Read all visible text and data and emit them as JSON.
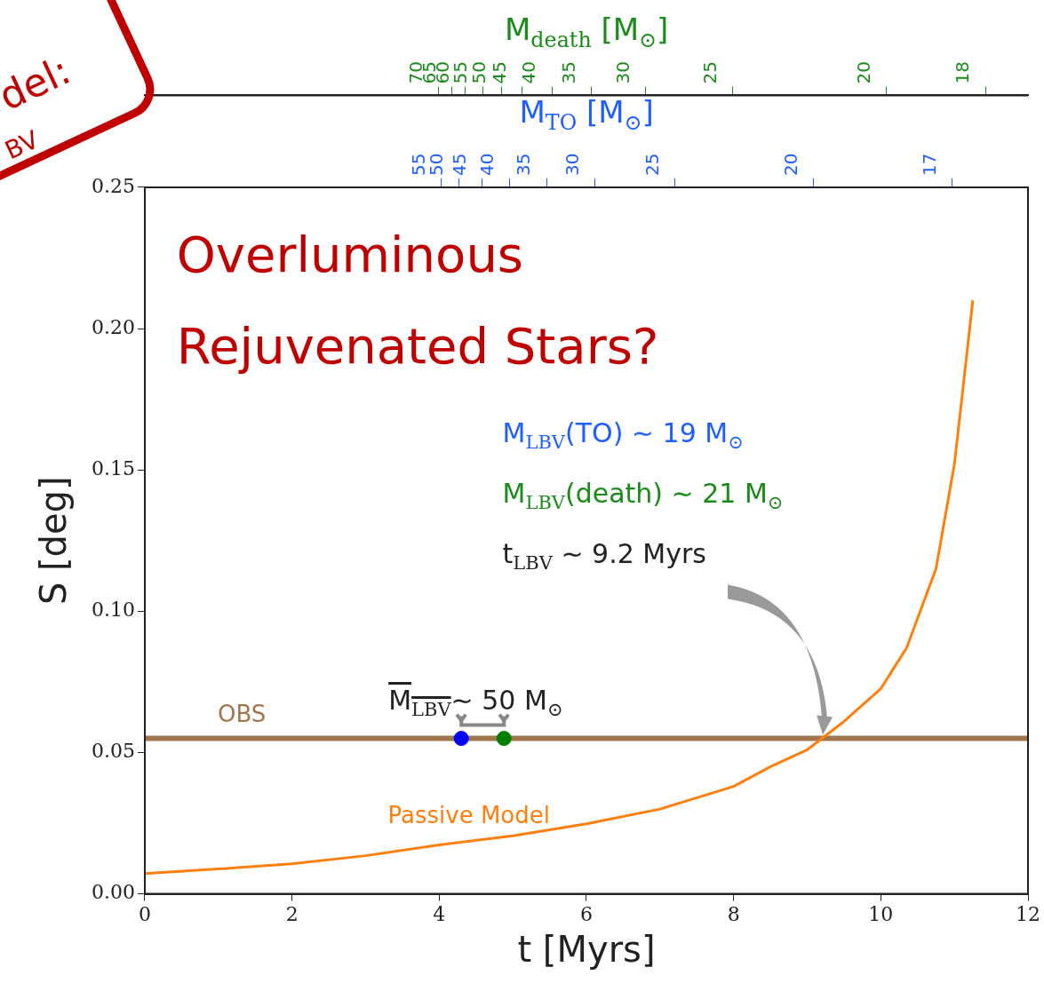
{
  "chart_data": {
    "type": "line",
    "xlabel": "t [Myrs]",
    "ylabel": "S [deg]",
    "x2label": "M$_{TO}$ [M$_{⊙}$]",
    "xlim": [
      0,
      12
    ],
    "xticks": [
      0,
      2,
      4,
      6,
      8,
      10,
      12
    ],
    "ylim": [
      0,
      0.25
    ],
    "yticks": [
      {
        "value": 0,
        "label": "0.00"
      },
      {
        "value": 0.05,
        "label": "0.05"
      },
      {
        "value": 0.1,
        "label": "0.10"
      },
      {
        "value": 0.15,
        "label": "0.15"
      },
      {
        "value": 0.2,
        "label": "0.20"
      },
      {
        "value": 0.25,
        "label": "0.25"
      }
    ],
    "series": [
      {
        "name": "Passive Model",
        "color": "#ff7f0e",
        "marker": "none",
        "line_style": "solid",
        "x": [
          0,
          1,
          2,
          3,
          4,
          5,
          6,
          7,
          8,
          8.5,
          9,
          9.5,
          10,
          10.35,
          10.75,
          11,
          11.1,
          11.25
        ],
        "values": [
          0.0072,
          0.0088,
          0.0106,
          0.0135,
          0.0173,
          0.0205,
          0.0248,
          0.03,
          0.038,
          0.045,
          0.051,
          0.061,
          0.0726,
          0.087,
          0.115,
          0.152,
          0.175,
          0.21
        ]
      },
      {
        "type": "scatter",
        "marker": "circle",
        "colors": [
          "#0000ff",
          "#008000"
        ],
        "x": [
          4.3,
          4.88
        ],
        "values": [
          0.055,
          0.055
        ]
      }
    ],
    "ref_lines": [
      {
        "axis": "y",
        "value": 0.055,
        "label": "OBS",
        "color": "#a0764f"
      }
    ],
    "annotations": [
      "Overluminous",
      "Rejuvenated Stars?",
      "M$_{LBV}$(TO) ∼ 19 M$_{⊙}$",
      "M$_{LBV}$(death) ∼ 21 M$_{⊙}$",
      "t$_{LBV}$ ∼ 9.2 Myrs",
      "M$_{LBV}$∼ 50 M$_{⊙}$",
      "del:",
      "BV",
      "M$_{death}$ [M$_{⊙}$]",
      "55",
      "50",
      "45",
      "40",
      "35",
      "30",
      "25",
      "20",
      "17",
      "70",
      "65",
      "60",
      "55",
      "50",
      "45",
      "40",
      "35",
      "30",
      "25",
      "20",
      "18"
    ],
    "grid": false,
    "legend": false
  }
}
